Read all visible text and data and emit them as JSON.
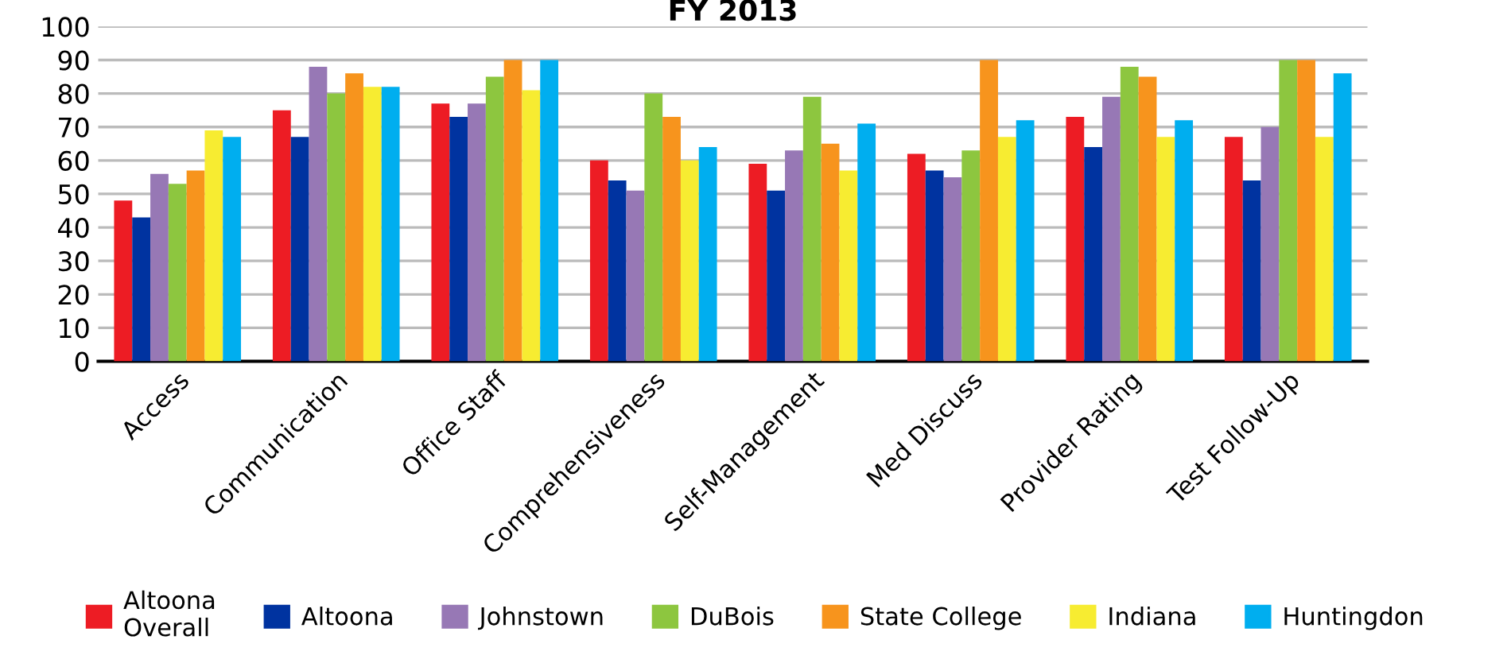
{
  "chart_data": {
    "type": "bar",
    "title": "FY 2013",
    "categories": [
      "Access",
      "Communication",
      "Office Staff",
      "Comprehensiveness",
      "Self-Management",
      "Med Discuss",
      "Provider Rating",
      "Test Follow-Up"
    ],
    "series": [
      {
        "name": "Altoona\nOverall",
        "color": "#ed1c24",
        "values": [
          48,
          75,
          77,
          60,
          59,
          62,
          73,
          67
        ]
      },
      {
        "name": "Altoona",
        "color": "#0033a0",
        "values": [
          43,
          67,
          73,
          54,
          51,
          57,
          64,
          54
        ]
      },
      {
        "name": "Johnstown",
        "color": "#9778b5",
        "values": [
          56,
          88,
          77,
          51,
          63,
          55,
          79,
          70
        ]
      },
      {
        "name": "DuBois",
        "color": "#8dc63f",
        "values": [
          53,
          80,
          85,
          80,
          79,
          63,
          88,
          90
        ]
      },
      {
        "name": "State College",
        "color": "#f7941d",
        "values": [
          57,
          86,
          90,
          73,
          65,
          90,
          85,
          90
        ]
      },
      {
        "name": "Indiana",
        "color": "#f7ec31",
        "values": [
          69,
          82,
          81,
          60,
          57,
          67,
          67,
          67
        ]
      },
      {
        "name": "Huntingdon",
        "color": "#00aeef",
        "values": [
          67,
          82,
          90,
          64,
          71,
          72,
          72,
          86
        ]
      }
    ],
    "ylim": [
      0,
      100
    ],
    "yticks": [
      0,
      10,
      20,
      30,
      40,
      50,
      60,
      70,
      80,
      90,
      100
    ],
    "grid": "y",
    "legend": "bottom"
  }
}
